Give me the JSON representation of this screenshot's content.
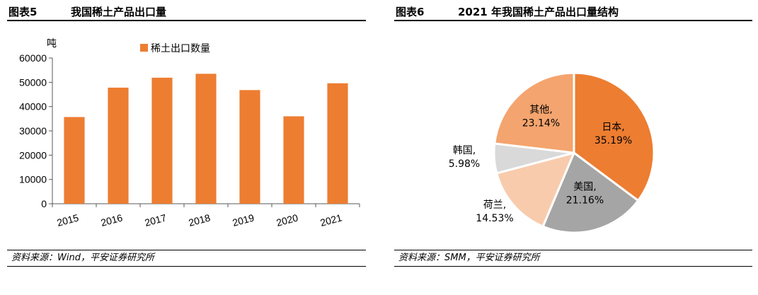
{
  "left": {
    "fig_num": "图表5",
    "fig_title": "我国稀土产品出口量",
    "source": "资料来源：Wind，平安证券研究所"
  },
  "right": {
    "fig_num": "图表6",
    "fig_title": "2021 年我国稀土产品出口量结构",
    "source": "资料来源：SMM，平安证券研究所"
  },
  "chart_data": [
    {
      "type": "bar",
      "categories": [
        "2015",
        "2016",
        "2017",
        "2018",
        "2019",
        "2020",
        "2021"
      ],
      "series": [
        {
          "name": "稀土出口数量",
          "values": [
            35700,
            47800,
            51900,
            53500,
            46800,
            36000,
            49600
          ],
          "color": "#ED7D31"
        }
      ],
      "ylabel": "吨",
      "ylim": [
        0,
        60000
      ],
      "yticks": [
        0,
        10000,
        20000,
        30000,
        40000,
        50000,
        60000
      ],
      "legend_position": "top",
      "grid": false
    },
    {
      "type": "pie",
      "slices": [
        {
          "name": "日本",
          "value": 35.19,
          "label": "35.19%",
          "color": "#ED7D31"
        },
        {
          "name": "美国",
          "value": 21.16,
          "label": "21.16%",
          "color": "#A5A5A5"
        },
        {
          "name": "荷兰",
          "value": 14.53,
          "label": "14.53%",
          "color": "#F8CBAD"
        },
        {
          "name": "韩国",
          "value": 5.98,
          "label": "5.98%",
          "color": "#D9D9D9"
        },
        {
          "name": "其他",
          "value": 23.14,
          "label": "23.14%",
          "color": "#F4A46E"
        }
      ],
      "legend_position": "none"
    }
  ]
}
